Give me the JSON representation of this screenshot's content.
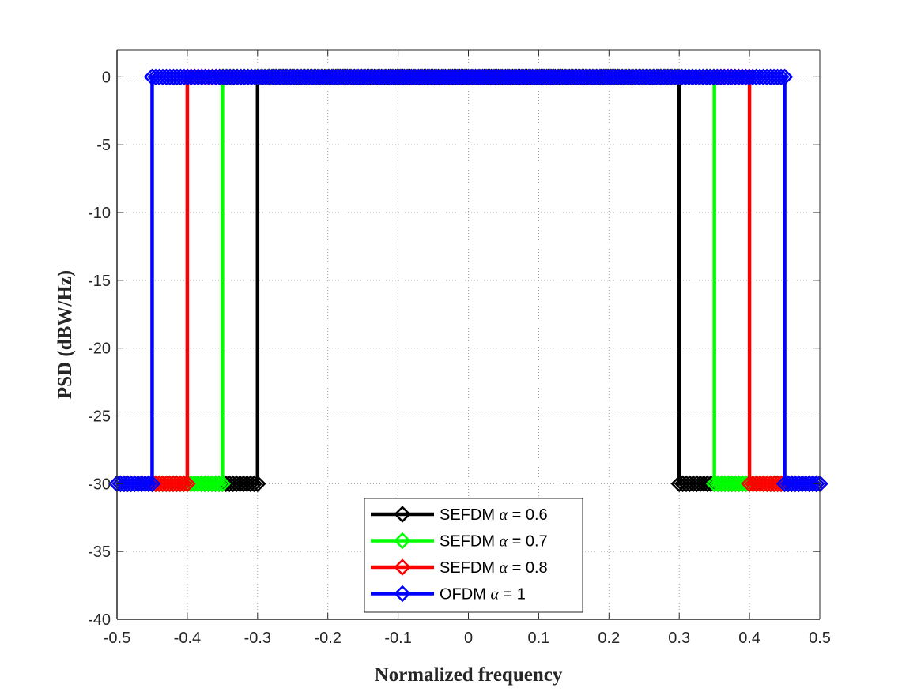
{
  "chart_data": {
    "type": "line",
    "xlabel": "Normalized frequency",
    "ylabel": "PSD (dBW/Hz)",
    "xlim": [
      -0.5,
      0.5
    ],
    "ylim": [
      -40,
      2
    ],
    "xticks": [
      -0.5,
      -0.4,
      -0.3,
      -0.2,
      -0.1,
      0,
      0.1,
      0.2,
      0.3,
      0.4,
      0.5
    ],
    "yticks": [
      0,
      -5,
      -10,
      -15,
      -20,
      -25,
      -30,
      -35,
      -40
    ],
    "xtick_labels": [
      "-0.5",
      "-0.4",
      "-0.3",
      "-0.2",
      "-0.1",
      "0",
      "0.1",
      "0.2",
      "0.3",
      "0.4",
      "0.5"
    ],
    "ytick_labels": [
      "0",
      "-5",
      "-10",
      "-15",
      "-20",
      "-25",
      "-30",
      "-35",
      "-40"
    ],
    "grid": true,
    "legend_position": "bottom-center",
    "marker": "diamond",
    "series": [
      {
        "name": "SEFDM α = 0.6",
        "label_prefix": "SEFDM ",
        "label_symbol": "α",
        "label_suffix": " = 0.6",
        "color": "#000000",
        "x": [
          -0.5,
          -0.3,
          -0.3,
          0.3,
          0.3,
          0.5
        ],
        "y": [
          -30,
          -30,
          0,
          0,
          -30,
          -30
        ]
      },
      {
        "name": "SEFDM α = 0.7",
        "label_prefix": "SEFDM ",
        "label_symbol": "α",
        "label_suffix": " = 0.7",
        "color": "#00ff00",
        "x": [
          -0.5,
          -0.35,
          -0.35,
          0.35,
          0.35,
          0.5
        ],
        "y": [
          -30,
          -30,
          0,
          0,
          -30,
          -30
        ]
      },
      {
        "name": "SEFDM α = 0.8",
        "label_prefix": "SEFDM ",
        "label_symbol": "α",
        "label_suffix": " = 0.8",
        "color": "#ff0000",
        "x": [
          -0.5,
          -0.4,
          -0.4,
          0.4,
          0.4,
          0.5
        ],
        "y": [
          -30,
          -30,
          0,
          0,
          -30,
          -30
        ]
      },
      {
        "name": "OFDM α = 1",
        "label_prefix": "OFDM ",
        "label_symbol": "α",
        "label_suffix": " = 1",
        "color": "#0000ff",
        "x": [
          -0.5,
          -0.45,
          -0.45,
          0.45,
          0.45,
          0.5
        ],
        "y": [
          -30,
          -30,
          0,
          0,
          -30,
          -30
        ]
      }
    ]
  }
}
